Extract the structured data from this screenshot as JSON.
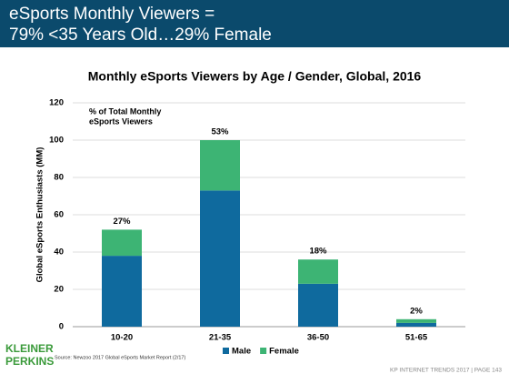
{
  "header": {
    "title_lines": [
      "eSports Monthly Viewers =",
      "79% <35 Years Old…29% Female"
    ]
  },
  "chart_data": {
    "type": "stacked_bar",
    "title": "Monthly eSports Viewers by Age / Gender, Global, 2016",
    "annotation_lines": [
      "% of Total Monthly",
      "eSports Viewers"
    ],
    "ylabel": "Global eSports Enthusiasts (MM)",
    "categories": [
      "10-20",
      "21-35",
      "36-50",
      "51-65"
    ],
    "series": [
      {
        "name": "Male",
        "color": "#0f6a9e",
        "values": [
          38,
          73,
          23,
          2
        ]
      },
      {
        "name": "Female",
        "color": "#3db474",
        "values": [
          14,
          27,
          13,
          2
        ]
      }
    ],
    "shares": {
      "values": [
        27,
        53,
        18,
        2
      ],
      "value_labels": [
        "27%",
        "53%",
        "18%",
        "2%"
      ]
    },
    "ylim": [
      0,
      120
    ],
    "yticks": [
      0,
      20,
      40,
      60,
      80,
      100,
      120
    ],
    "grid": true
  },
  "footer": {
    "source": "Source: Newzoo 2017 Global eSports Market Report (2/17)",
    "logo_lines": [
      "KLEINER",
      "PERKINS"
    ],
    "page": "KP INTERNET TRENDS 2017  |  PAGE 143"
  }
}
